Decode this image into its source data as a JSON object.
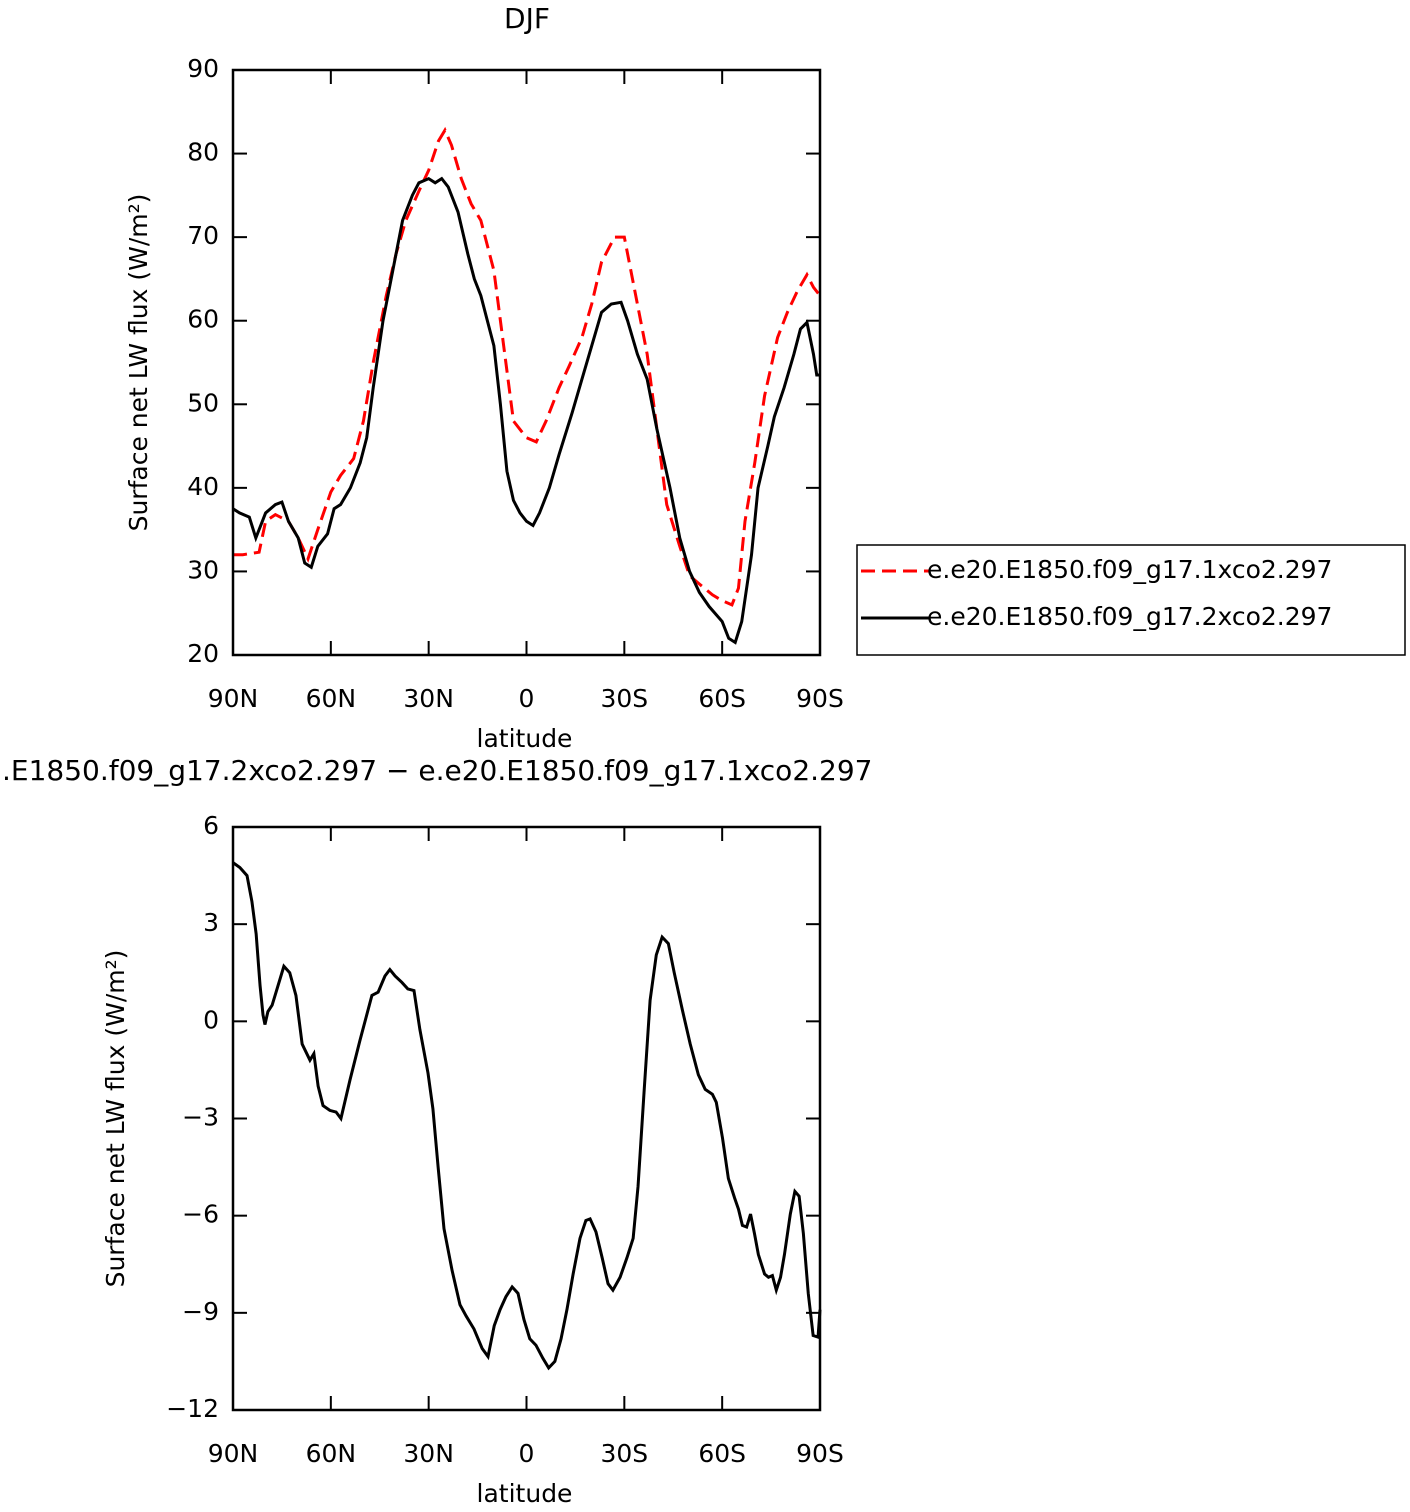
{
  "chart_data": [
    {
      "type": "line",
      "title": "DJF",
      "x_label": "latitude",
      "y_label": "Surface net LW flux (W/m²)",
      "xlim": [
        90,
        -90
      ],
      "ylim": [
        20,
        90
      ],
      "xticks": [
        {
          "value": 90,
          "label": "90N"
        },
        {
          "value": 60,
          "label": "60N"
        },
        {
          "value": 30,
          "label": "30N"
        },
        0,
        {
          "value": -30,
          "label": "30S"
        },
        {
          "value": -60,
          "label": "60S"
        },
        {
          "value": -90,
          "label": "90S"
        }
      ],
      "yticks": [
        20,
        30,
        40,
        50,
        60,
        70,
        80,
        90
      ],
      "legend": "right",
      "series": [
        {
          "name": "e.e20.E1850.f09_g17.1xco2.297",
          "color": "#ff0000",
          "linestyle": "dashed",
          "x": [
            90,
            87,
            82,
            80,
            77,
            73,
            70,
            67,
            64,
            60,
            57,
            53,
            50,
            47,
            43,
            40,
            37,
            33,
            30,
            27,
            25,
            23,
            20,
            17,
            14,
            10,
            7,
            4,
            0,
            -3,
            -6,
            -10,
            -13,
            -17,
            -20,
            -23,
            -27,
            -30,
            -33,
            -37,
            -40,
            -43,
            -47,
            -50,
            -53,
            -57,
            -60,
            -63,
            -65,
            -67,
            -70,
            -73,
            -77,
            -80,
            -83,
            -86,
            -88,
            -90
          ],
          "values": [
            32,
            32,
            32.3,
            36,
            36.8,
            36,
            34,
            31.5,
            35,
            39.5,
            41.5,
            43.5,
            48,
            55,
            63,
            68,
            72,
            75.5,
            78,
            81.5,
            82.8,
            81,
            77,
            74,
            72,
            66,
            57,
            48,
            46,
            45.5,
            48,
            52,
            54.5,
            58,
            62,
            67,
            70,
            70,
            64,
            56,
            47,
            38,
            33,
            29.5,
            28.5,
            27.2,
            26.5,
            26,
            28,
            36,
            43,
            51,
            58,
            61,
            63.5,
            65.5,
            64,
            63
          ]
        },
        {
          "name": "e.e20.E1850.f09_g17.2xco2.297",
          "color": "#000000",
          "linestyle": "solid",
          "x": [
            90,
            88,
            85,
            83,
            80,
            77,
            75,
            73,
            70,
            68,
            66,
            64,
            61,
            59,
            57,
            54,
            51,
            49,
            47,
            44,
            41,
            38,
            35,
            33,
            30,
            28,
            26,
            24,
            21,
            18,
            16,
            14,
            12,
            10,
            8,
            6,
            4,
            2,
            0,
            -2,
            -4,
            -7,
            -10,
            -14,
            -17,
            -20,
            -23,
            -26,
            -29,
            -31,
            -34,
            -37,
            -40,
            -44,
            -47,
            -50,
            -53,
            -56,
            -60,
            -62,
            -64,
            -66,
            -69,
            -71,
            -74,
            -76,
            -79,
            -82,
            -84,
            -86,
            -88,
            -89,
            -90
          ],
          "values": [
            37.5,
            37,
            36.5,
            34,
            37,
            38,
            38.3,
            36,
            34,
            31,
            30.5,
            33,
            34.5,
            37.5,
            38,
            40,
            43,
            46,
            52,
            60,
            66,
            72,
            75,
            76.5,
            77,
            76.5,
            77,
            76,
            73,
            68,
            65,
            63,
            60,
            57,
            50,
            42,
            38.5,
            37,
            36,
            35.5,
            37,
            40,
            44,
            49,
            53,
            57,
            61,
            62,
            62.2,
            60,
            56,
            53,
            47,
            40,
            34,
            30,
            27.5,
            25.8,
            24,
            22,
            21.5,
            24,
            32,
            40,
            45,
            48.5,
            52,
            56,
            59,
            59.8,
            56,
            53.5,
            53.5
          ]
        }
      ]
    },
    {
      "type": "line",
      "title": ".E1850.f09_g17.2xco2.297 − e.e20.E1850.f09_g17.1xco2.297",
      "x_label": "latitude",
      "y_label": "Surface net LW flux (W/m²)",
      "xlim": [
        90,
        -90
      ],
      "ylim": [
        -12,
        6
      ],
      "xticks": [
        {
          "value": 90,
          "label": "90N"
        },
        {
          "value": 60,
          "label": "60N"
        },
        {
          "value": 30,
          "label": "30N"
        },
        0,
        {
          "value": -30,
          "label": "30S"
        },
        {
          "value": -60,
          "label": "60S"
        },
        {
          "value": -90,
          "label": "90S"
        }
      ],
      "yticks": [
        {
          "value": -12,
          "label": "−12"
        },
        {
          "value": -9,
          "label": "−9"
        },
        {
          "value": -6,
          "label": "−6"
        },
        {
          "value": -3,
          "label": "−3"
        },
        0,
        3,
        6
      ],
      "color": "#000000",
      "x": [
        90,
        87.9,
        85.7,
        84.2,
        82.9,
        81.7,
        80.8,
        80.2,
        79.3,
        78,
        76.8,
        74.4,
        72.6,
        70.7,
        68.8,
        66.4,
        65.2,
        63.9,
        62.4,
        60.3,
        58.4,
        56.9,
        54.1,
        51.1,
        47.4,
        45.5,
        43.4,
        41.9,
        40.3,
        38.2,
        36.4,
        34.5,
        32.7,
        30.2,
        28.7,
        27.1,
        25.3,
        22.8,
        20.4,
        18.5,
        16.1,
        13.6,
        11.8,
        9.9,
        8.1,
        6.3,
        4.4,
        2.6,
        0.8,
        -1,
        -2.9,
        -5,
        -6.8,
        -8.7,
        -10.6,
        -12.4,
        -14.3,
        -16.4,
        -18.2,
        -19.5,
        -21.3,
        -23.2,
        -25,
        -26.5,
        -28.7,
        -30.8,
        -32.7,
        -34.2,
        -36.1,
        -37.9,
        -39.8,
        -41.6,
        -43.5,
        -45.3,
        -47.8,
        -50.2,
        -52.7,
        -54.8,
        -57,
        -58.2,
        -60.1,
        -61.9,
        -63.8,
        -65,
        -66.2,
        -67.5,
        -68.7,
        -69.9,
        -71.1,
        -73,
        -74.2,
        -75.4,
        -76.6,
        -77.9,
        -79.1,
        -80.9,
        -82.3,
        -83.6,
        -84.9,
        -86.4,
        -87.9,
        -89.4,
        -90
      ],
      "values": [
        4.9,
        4.75,
        4.5,
        3.7,
        2.7,
        1.1,
        0.2,
        -0.1,
        0.3,
        0.5,
        0.9,
        1.7,
        1.5,
        0.8,
        -0.7,
        -1.2,
        -1,
        -2,
        -2.6,
        -2.75,
        -2.8,
        -3,
        -1.8,
        -0.6,
        0.8,
        0.9,
        1.4,
        1.6,
        1.4,
        1.2,
        1,
        0.95,
        -0.25,
        -1.6,
        -2.7,
        -4.5,
        -6.4,
        -7.7,
        -8.75,
        -9.1,
        -9.5,
        -10.1,
        -10.35,
        -9.4,
        -8.9,
        -8.5,
        -8.2,
        -8.4,
        -9.2,
        -9.8,
        -10,
        -10.4,
        -10.7,
        -10.5,
        -9.8,
        -8.9,
        -7.8,
        -6.7,
        -6.15,
        -6.1,
        -6.5,
        -7.3,
        -8.1,
        -8.3,
        -7.9,
        -7.3,
        -6.7,
        -5.1,
        -2.1,
        0.65,
        2.05,
        2.6,
        2.4,
        1.5,
        0.35,
        -0.7,
        -1.65,
        -2.1,
        -2.25,
        -2.5,
        -3.6,
        -4.85,
        -5.45,
        -5.8,
        -6.3,
        -6.35,
        -5.95,
        -6.55,
        -7.2,
        -7.8,
        -7.9,
        -7.85,
        -8.3,
        -7.9,
        -7.2,
        -5.95,
        -5.25,
        -5.4,
        -6.55,
        -8.4,
        -9.7,
        -9.75,
        -8.9
      ]
    }
  ]
}
